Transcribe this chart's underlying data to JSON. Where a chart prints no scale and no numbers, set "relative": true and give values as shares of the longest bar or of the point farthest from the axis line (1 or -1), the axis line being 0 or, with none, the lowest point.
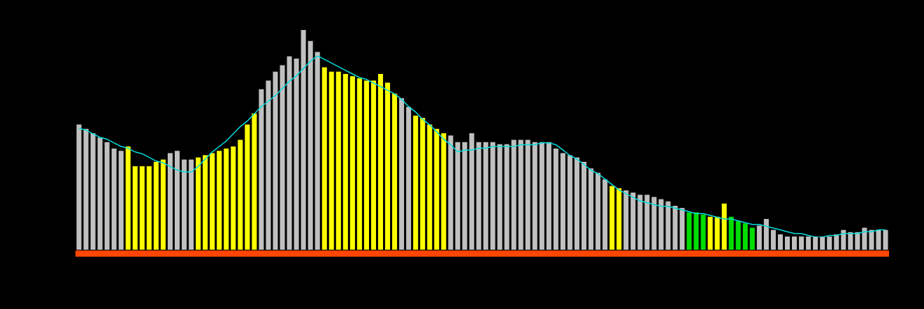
{
  "chart_data": [
    {
      "type": "bar",
      "relative": true,
      "legend": false,
      "categories": [
        null,
        null,
        null,
        null,
        null,
        null,
        null,
        null,
        null,
        null,
        null,
        null,
        null,
        null,
        null,
        null,
        null,
        null,
        null,
        null,
        null,
        null,
        null,
        null,
        null,
        null,
        null,
        null,
        null,
        null,
        null,
        null,
        null,
        null,
        null,
        null,
        null,
        null,
        null,
        null,
        null,
        null,
        null,
        null,
        null,
        null,
        null,
        null,
        null,
        null,
        null,
        null,
        null,
        null,
        null,
        null,
        null,
        null,
        null,
        null,
        null,
        null,
        null,
        null,
        null,
        null,
        null,
        null,
        null,
        null,
        null,
        null,
        null,
        null,
        null,
        null,
        null,
        null,
        null,
        null,
        null,
        null,
        null,
        null,
        null,
        null,
        null,
        null,
        null,
        null,
        null,
        null,
        null,
        null,
        null,
        null,
        null,
        null,
        null,
        null,
        null,
        null,
        null,
        null,
        null,
        null,
        null,
        null,
        null,
        null,
        null,
        null,
        null,
        null,
        null,
        null
      ],
      "colors": [
        "#c0c0c0",
        "#c0c0c0",
        "#c0c0c0",
        "#c0c0c0",
        "#c0c0c0",
        "#c0c0c0",
        "#c0c0c0",
        "#ffff00",
        "#ffff00",
        "#ffff00",
        "#ffff00",
        "#ffff00",
        "#ffff00",
        "#c0c0c0",
        "#c0c0c0",
        "#c0c0c0",
        "#c0c0c0",
        "#ffff00",
        "#ffff00",
        "#ffff00",
        "#ffff00",
        "#ffff00",
        "#ffff00",
        "#ffff00",
        "#ffff00",
        "#ffff00",
        "#c0c0c0",
        "#c0c0c0",
        "#c0c0c0",
        "#c0c0c0",
        "#c0c0c0",
        "#c0c0c0",
        "#c0c0c0",
        "#c0c0c0",
        "#c0c0c0",
        "#ffff00",
        "#ffff00",
        "#ffff00",
        "#ffff00",
        "#ffff00",
        "#ffff00",
        "#ffff00",
        "#ffff00",
        "#ffff00",
        "#ffff00",
        "#ffff00",
        "#c0c0c0",
        "#c0c0c0",
        "#ffff00",
        "#ffff00",
        "#ffff00",
        "#ffff00",
        "#ffff00",
        "#c0c0c0",
        "#c0c0c0",
        "#c0c0c0",
        "#c0c0c0",
        "#c0c0c0",
        "#c0c0c0",
        "#c0c0c0",
        "#c0c0c0",
        "#c0c0c0",
        "#c0c0c0",
        "#c0c0c0",
        "#c0c0c0",
        "#c0c0c0",
        "#c0c0c0",
        "#c0c0c0",
        "#c0c0c0",
        "#c0c0c0",
        "#c0c0c0",
        "#c0c0c0",
        "#c0c0c0",
        "#c0c0c0",
        "#c0c0c0",
        "#c0c0c0",
        "#ffff00",
        "#ffff00",
        "#c0c0c0",
        "#c0c0c0",
        "#c0c0c0",
        "#c0c0c0",
        "#c0c0c0",
        "#c0c0c0",
        "#c0c0c0",
        "#c0c0c0",
        "#c0c0c0",
        "#00dd00",
        "#00dd00",
        "#00dd00",
        "#ffff00",
        "#ffff00",
        "#ffff00",
        "#00dd00",
        "#00dd00",
        "#00dd00",
        "#00dd00",
        "#c0c0c0",
        "#c0c0c0",
        "#c0c0c0",
        "#c0c0c0",
        "#c0c0c0",
        "#c0c0c0",
        "#c0c0c0",
        "#c0c0c0",
        "#c0c0c0",
        "#c0c0c0",
        "#c0c0c0",
        "#c0c0c0",
        "#c0c0c0",
        "#c0c0c0",
        "#c0c0c0",
        "#c0c0c0",
        "#c0c0c0",
        "#c0c0c0",
        "#c0c0c0"
      ],
      "values": [
        0.57,
        0.55,
        0.53,
        0.51,
        0.49,
        0.46,
        0.45,
        0.47,
        0.38,
        0.38,
        0.38,
        0.4,
        0.41,
        0.44,
        0.45,
        0.41,
        0.41,
        0.42,
        0.43,
        0.44,
        0.45,
        0.46,
        0.47,
        0.5,
        0.57,
        0.62,
        0.73,
        0.77,
        0.81,
        0.84,
        0.88,
        0.87,
        1,
        0.95,
        0.9,
        0.83,
        0.81,
        0.81,
        0.8,
        0.79,
        0.78,
        0.77,
        0.77,
        0.8,
        0.76,
        0.71,
        0.69,
        0.65,
        0.61,
        0.6,
        0.57,
        0.55,
        0.53,
        0.52,
        0.49,
        0.49,
        0.53,
        0.49,
        0.49,
        0.49,
        0.48,
        0.48,
        0.5,
        0.5,
        0.5,
        0.49,
        0.49,
        0.49,
        0.46,
        0.44,
        0.43,
        0.42,
        0.4,
        0.37,
        0.35,
        0.32,
        0.29,
        0.28,
        0.27,
        0.26,
        0.25,
        0.25,
        0.24,
        0.23,
        0.22,
        0.2,
        0.19,
        0.17,
        0.17,
        0.16,
        0.15,
        0.15,
        0.21,
        0.15,
        0.13,
        0.12,
        0.1,
        0.11,
        0.14,
        0.09,
        0.07,
        0.06,
        0.06,
        0.06,
        0.06,
        0.06,
        0.06,
        0.06,
        0.07,
        0.09,
        0.08,
        0.08,
        0.1,
        0.09,
        0.09,
        0.09
      ]
    },
    {
      "type": "line",
      "relative": true,
      "legend": false,
      "marker": "none",
      "color": "#00dddd",
      "categories": [
        null,
        null,
        null,
        null,
        null,
        null,
        null,
        null,
        null,
        null,
        null,
        null,
        null,
        null,
        null,
        null,
        null,
        null,
        null,
        null,
        null,
        null,
        null,
        null,
        null,
        null,
        null,
        null,
        null,
        null,
        null,
        null,
        null,
        null,
        null,
        null,
        null,
        null,
        null,
        null,
        null,
        null,
        null,
        null,
        null,
        null,
        null,
        null,
        null,
        null,
        null,
        null,
        null,
        null,
        null,
        null,
        null,
        null,
        null,
        null,
        null,
        null,
        null,
        null,
        null,
        null,
        null,
        null,
        null,
        null,
        null,
        null,
        null,
        null,
        null,
        null,
        null,
        null,
        null,
        null,
        null,
        null,
        null,
        null,
        null,
        null,
        null,
        null,
        null,
        null,
        null,
        null,
        null,
        null,
        null,
        null,
        null,
        null,
        null,
        null,
        null,
        null,
        null,
        null,
        null,
        null,
        null,
        null,
        null,
        null,
        null,
        null,
        null,
        null,
        null,
        null
      ],
      "values": [
        0.6,
        0.59,
        0.57,
        0.55,
        0.54,
        0.52,
        0.5,
        0.49,
        0.47,
        0.46,
        0.44,
        0.42,
        0.41,
        0.39,
        0.37,
        0.36,
        0.36,
        0.39,
        0.43,
        0.47,
        0.5,
        0.53,
        0.57,
        0.61,
        0.64,
        0.68,
        0.72,
        0.75,
        0.78,
        0.82,
        0.86,
        0.89,
        0.93,
        0.97,
        1,
        0.98,
        0.96,
        0.94,
        0.92,
        0.9,
        0.88,
        0.87,
        0.85,
        0.83,
        0.81,
        0.79,
        0.76,
        0.72,
        0.69,
        0.65,
        0.62,
        0.58,
        0.54,
        0.51,
        0.47,
        0.48,
        0.48,
        0.49,
        0.49,
        0.5,
        0.5,
        0.5,
        0.5,
        0.51,
        0.51,
        0.51,
        0.52,
        0.52,
        0.51,
        0.48,
        0.45,
        0.43,
        0.4,
        0.37,
        0.35,
        0.32,
        0.29,
        0.26,
        0.24,
        0.22,
        0.2,
        0.19,
        0.18,
        0.17,
        0.17,
        0.16,
        0.15,
        0.14,
        0.13,
        0.13,
        0.12,
        0.11,
        0.1,
        0.1,
        0.09,
        0.08,
        0.07,
        0.07,
        0.06,
        0.05,
        0.04,
        0.03,
        0.02,
        0.02,
        0.01,
        0,
        0,
        0.01,
        0.01,
        0.02,
        0.02,
        0.02,
        0.03,
        0.03,
        0.04,
        0.04
      ]
    }
  ]
}
